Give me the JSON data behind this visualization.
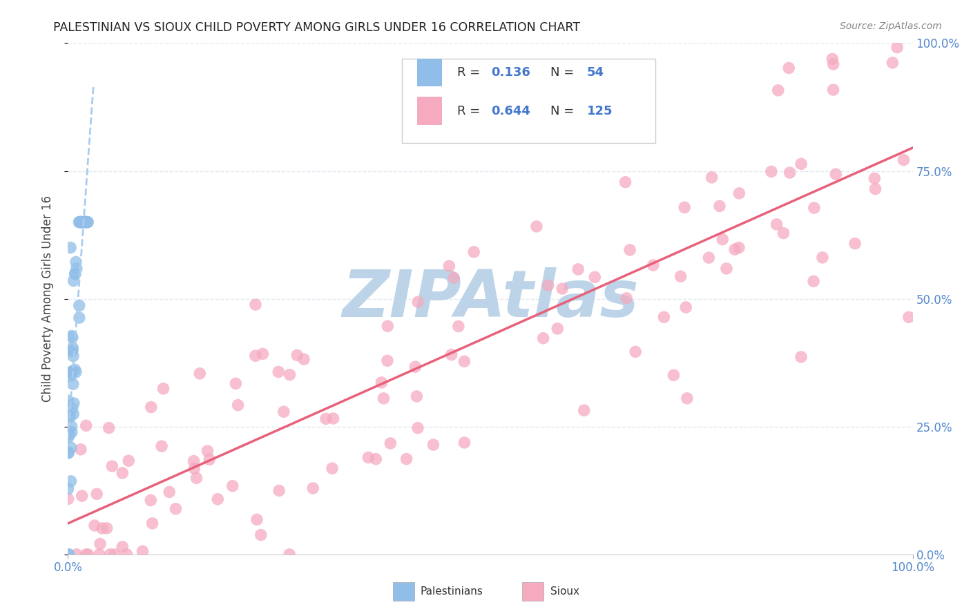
{
  "title": "PALESTINIAN VS SIOUX CHILD POVERTY AMONG GIRLS UNDER 16 CORRELATION CHART",
  "source": "Source: ZipAtlas.com",
  "ylabel": "Child Poverty Among Girls Under 16",
  "xlim": [
    0,
    1
  ],
  "ylim": [
    0,
    1
  ],
  "y_tick_labels": [
    "0.0%",
    "25.0%",
    "50.0%",
    "75.0%",
    "100.0%"
  ],
  "y_tick_positions": [
    0.0,
    0.25,
    0.5,
    0.75,
    1.0
  ],
  "legend_r1": "R = ",
  "legend_v1": "0.136",
  "legend_n1_label": "N = ",
  "legend_n1_val": "54",
  "legend_r2": "R = ",
  "legend_v2": "0.644",
  "legend_n2_label": "N = ",
  "legend_n2_val": "125",
  "color_blue": "#91BEE8",
  "color_pink": "#F5AABF",
  "color_line_blue_dash": "#AACCEE",
  "color_line_pink": "#E8607A",
  "color_blue_text": "#4477CC",
  "background_color": "#FFFFFF",
  "watermark_text": "ZIPAtlas",
  "watermark_color": "#BDD4E8",
  "grid_color": "#E0E8F0",
  "tick_color": "#5588CC",
  "legend_text_color": "#333333"
}
